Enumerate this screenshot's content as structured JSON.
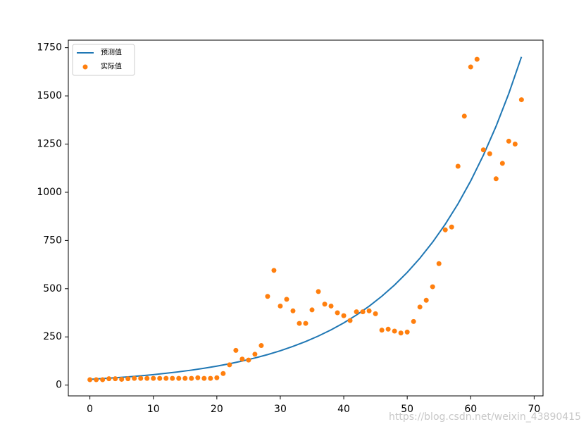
{
  "chart_data": {
    "type": "line",
    "xlim": [
      -3.4,
      71.4
    ],
    "ylim": [
      -56,
      1789
    ],
    "xticks": [
      0,
      10,
      20,
      30,
      40,
      50,
      60,
      70
    ],
    "yticks": [
      0,
      250,
      500,
      750,
      1000,
      1250,
      1500,
      1750
    ],
    "legend": "upper left",
    "watermark": "https://blog.csdn.net/weixin_43890415",
    "series": [
      {
        "name": "预测值",
        "type": "line",
        "color": "#1f77b4",
        "x": [
          0,
          2,
          4,
          6,
          8,
          10,
          12,
          14,
          16,
          18,
          20,
          22,
          24,
          26,
          28,
          30,
          32,
          34,
          36,
          38,
          40,
          42,
          44,
          46,
          48,
          50,
          52,
          54,
          56,
          58,
          60,
          62,
          64,
          66,
          68
        ],
        "values": [
          30,
          33.8,
          38.0,
          42.8,
          48.2,
          54.3,
          61.2,
          68.9,
          77.6,
          87.4,
          98.4,
          110.8,
          124.8,
          140.5,
          158.2,
          178.2,
          200.7,
          226.0,
          254.5,
          286.6,
          322.7,
          363.4,
          409.3,
          460.9,
          519.0,
          584.5,
          658.2,
          741.2,
          834.7,
          940.0,
          1058.6,
          1192.1,
          1342.5,
          1511.8,
          1702.5
        ]
      },
      {
        "name": "实际值",
        "type": "scatter",
        "color": "#ff7f0e",
        "x": [
          0,
          1,
          2,
          3,
          4,
          5,
          6,
          7,
          8,
          9,
          10,
          11,
          12,
          13,
          14,
          15,
          16,
          17,
          18,
          19,
          20,
          21,
          22,
          23,
          24,
          25,
          26,
          27,
          28,
          29,
          30,
          31,
          32,
          33,
          34,
          35,
          36,
          37,
          38,
          39,
          40,
          41,
          42,
          43,
          44,
          45,
          46,
          47,
          48,
          49,
          50,
          51,
          52,
          53,
          54,
          55,
          56,
          57,
          58,
          59,
          60,
          61,
          62,
          63,
          64,
          65,
          66,
          67,
          68
        ],
        "values": [
          28,
          28,
          28,
          33,
          33,
          30,
          33,
          35,
          35,
          35,
          35,
          35,
          35,
          35,
          35,
          35,
          35,
          38,
          35,
          35,
          38,
          60,
          105,
          180,
          135,
          130,
          160,
          205,
          460,
          595,
          410,
          445,
          385,
          320,
          320,
          390,
          485,
          420,
          410,
          375,
          360,
          335,
          380,
          380,
          385,
          370,
          285,
          290,
          280,
          270,
          275,
          330,
          405,
          440,
          510,
          630,
          805,
          820,
          1135,
          1395,
          1650,
          1690,
          1220,
          1200,
          1070,
          1150,
          1265,
          1250,
          1480
        ]
      }
    ]
  }
}
